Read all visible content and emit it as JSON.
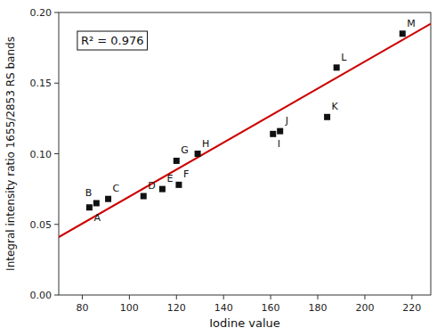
{
  "chart_data": {
    "type": "scatter",
    "x_label": "Iodine value",
    "y_label": "Integral intensity ratio 1655/2853 RS bands",
    "annotations": [
      "R² = 0.976"
    ],
    "series": [
      {
        "type": "scatter",
        "color": "#111111",
        "marker": "square",
        "x": [
          83,
          86,
          91,
          106,
          114,
          121,
          120,
          129,
          161,
          164,
          184,
          188,
          216
        ],
        "values": [
          0.062,
          0.065,
          0.068,
          0.07,
          0.075,
          0.078,
          0.095,
          0.1,
          0.114,
          0.116,
          0.126,
          0.161,
          0.185
        ],
        "labels": [
          "A",
          "B",
          "C",
          "D",
          "E",
          "F",
          "G",
          "H",
          "I",
          "J",
          "K",
          "L",
          "M"
        ]
      },
      {
        "type": "line",
        "color": "#cc0000",
        "x": [
          70,
          228
        ],
        "values": [
          0.041,
          0.192
        ]
      }
    ],
    "xlim": [
      70,
      228
    ],
    "ylim": [
      0.0,
      0.2
    ],
    "xticks": [
      80,
      100,
      120,
      140,
      160,
      180,
      200,
      220
    ],
    "yticks": [
      {
        "value": 0.0,
        "label": "0.00"
      },
      0.05,
      {
        "value": 0.1,
        "label": "0.10"
      },
      0.15,
      {
        "value": 0.2,
        "label": "0.20"
      }
    ],
    "grid": false
  }
}
